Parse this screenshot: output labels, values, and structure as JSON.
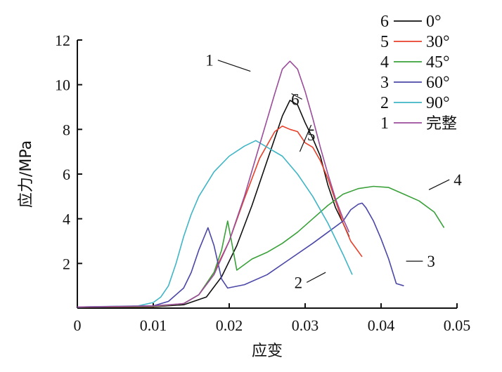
{
  "chart_data": {
    "type": "line",
    "title": "",
    "xlabel": "应变",
    "ylabel": "应力/MPa",
    "xlim": [
      0,
      0.05
    ],
    "ylim": [
      0,
      12
    ],
    "x_ticks": [
      "0",
      "0.01",
      "0.02",
      "0.03",
      "0.04",
      "0.05"
    ],
    "y_ticks": [
      "2",
      "4",
      "6",
      "8",
      "10",
      "12"
    ],
    "grid": false,
    "legend_placement": "top-right",
    "series": [
      {
        "id": "6",
        "name": "0°",
        "color": "#111111",
        "label": "6",
        "label_x": 0.0282,
        "label_y": 9.6,
        "points": [
          [
            0,
            0.05
          ],
          [
            0.01,
            0.06
          ],
          [
            0.014,
            0.15
          ],
          [
            0.017,
            0.5
          ],
          [
            0.019,
            1.4
          ],
          [
            0.021,
            2.8
          ],
          [
            0.023,
            4.6
          ],
          [
            0.025,
            6.6
          ],
          [
            0.027,
            8.6
          ],
          [
            0.028,
            9.3
          ],
          [
            0.029,
            9.1
          ],
          [
            0.03,
            8.3
          ],
          [
            0.031,
            7.6
          ],
          [
            0.032,
            6.8
          ],
          [
            0.033,
            5.5
          ],
          [
            0.034,
            4.5
          ],
          [
            0.035,
            3.8
          ],
          [
            0.0358,
            3.2
          ]
        ]
      },
      {
        "id": "5",
        "name": "30°",
        "color": "#e8412b",
        "label": "5",
        "label_x": 0.0293,
        "label_y": 7.0,
        "points": [
          [
            0,
            0.05
          ],
          [
            0.01,
            0.07
          ],
          [
            0.014,
            0.2
          ],
          [
            0.016,
            0.6
          ],
          [
            0.018,
            1.6
          ],
          [
            0.02,
            3.0
          ],
          [
            0.022,
            4.9
          ],
          [
            0.024,
            6.7
          ],
          [
            0.026,
            7.9
          ],
          [
            0.027,
            8.15
          ],
          [
            0.028,
            8.0
          ],
          [
            0.029,
            7.9
          ],
          [
            0.03,
            7.4
          ],
          [
            0.031,
            7.2
          ],
          [
            0.032,
            6.6
          ],
          [
            0.033,
            5.8
          ],
          [
            0.034,
            4.8
          ],
          [
            0.035,
            3.8
          ],
          [
            0.036,
            3.0
          ],
          [
            0.0375,
            2.3
          ]
        ]
      },
      {
        "id": "4",
        "name": "45°",
        "color": "#3aa13a",
        "label": "4",
        "label_x": 0.0463,
        "label_y": 5.3,
        "points": [
          [
            0,
            0.05
          ],
          [
            0.01,
            0.08
          ],
          [
            0.014,
            0.2
          ],
          [
            0.016,
            0.6
          ],
          [
            0.018,
            1.6
          ],
          [
            0.019,
            2.6
          ],
          [
            0.0198,
            3.9
          ],
          [
            0.0203,
            3.0
          ],
          [
            0.021,
            1.7
          ],
          [
            0.023,
            2.2
          ],
          [
            0.025,
            2.5
          ],
          [
            0.027,
            2.9
          ],
          [
            0.029,
            3.4
          ],
          [
            0.031,
            4.0
          ],
          [
            0.033,
            4.6
          ],
          [
            0.035,
            5.1
          ],
          [
            0.037,
            5.35
          ],
          [
            0.039,
            5.45
          ],
          [
            0.041,
            5.4
          ],
          [
            0.043,
            5.1
          ],
          [
            0.045,
            4.8
          ],
          [
            0.047,
            4.3
          ],
          [
            0.0483,
            3.6
          ]
        ]
      },
      {
        "id": "3",
        "name": "60°",
        "color": "#4b47a7",
        "label": "3",
        "label_x": 0.0433,
        "label_y": 2.1,
        "points": [
          [
            0,
            0.05
          ],
          [
            0.01,
            0.1
          ],
          [
            0.012,
            0.3
          ],
          [
            0.014,
            0.9
          ],
          [
            0.015,
            1.6
          ],
          [
            0.016,
            2.6
          ],
          [
            0.0172,
            3.6
          ],
          [
            0.018,
            2.8
          ],
          [
            0.019,
            1.3
          ],
          [
            0.0198,
            0.9
          ],
          [
            0.022,
            1.05
          ],
          [
            0.025,
            1.5
          ],
          [
            0.028,
            2.2
          ],
          [
            0.031,
            2.9
          ],
          [
            0.033,
            3.4
          ],
          [
            0.035,
            3.9
          ],
          [
            0.036,
            4.4
          ],
          [
            0.037,
            4.65
          ],
          [
            0.0375,
            4.7
          ],
          [
            0.038,
            4.5
          ],
          [
            0.039,
            3.9
          ],
          [
            0.04,
            3.1
          ],
          [
            0.041,
            2.2
          ],
          [
            0.042,
            1.1
          ],
          [
            0.043,
            1.0
          ]
        ]
      },
      {
        "id": "2",
        "name": "90°",
        "color": "#3fb5c6",
        "label": "2",
        "label_x": 0.0327,
        "label_y": 1.6,
        "points": [
          [
            0,
            0.05
          ],
          [
            0.008,
            0.1
          ],
          [
            0.01,
            0.25
          ],
          [
            0.011,
            0.5
          ],
          [
            0.012,
            1.0
          ],
          [
            0.013,
            2.0
          ],
          [
            0.014,
            3.2
          ],
          [
            0.015,
            4.2
          ],
          [
            0.016,
            5.0
          ],
          [
            0.018,
            6.1
          ],
          [
            0.02,
            6.8
          ],
          [
            0.022,
            7.25
          ],
          [
            0.0235,
            7.5
          ],
          [
            0.025,
            7.2
          ],
          [
            0.027,
            6.8
          ],
          [
            0.029,
            6.0
          ],
          [
            0.031,
            5.0
          ],
          [
            0.033,
            3.8
          ],
          [
            0.035,
            2.4
          ],
          [
            0.0362,
            1.5
          ]
        ]
      },
      {
        "id": "1",
        "name": "完整",
        "color": "#9b4d9b",
        "label": "1",
        "label_x": 0.0228,
        "label_y": 10.6,
        "points": [
          [
            0,
            0.05
          ],
          [
            0.01,
            0.1
          ],
          [
            0.014,
            0.2
          ],
          [
            0.016,
            0.6
          ],
          [
            0.018,
            1.5
          ],
          [
            0.02,
            3.0
          ],
          [
            0.022,
            5.0
          ],
          [
            0.024,
            7.3
          ],
          [
            0.026,
            9.6
          ],
          [
            0.027,
            10.7
          ],
          [
            0.028,
            11.05
          ],
          [
            0.029,
            10.7
          ],
          [
            0.03,
            9.7
          ],
          [
            0.031,
            8.5
          ],
          [
            0.032,
            7.2
          ],
          [
            0.033,
            6.0
          ],
          [
            0.034,
            4.9
          ],
          [
            0.035,
            4.0
          ],
          [
            0.0358,
            3.4
          ]
        ]
      }
    ]
  }
}
